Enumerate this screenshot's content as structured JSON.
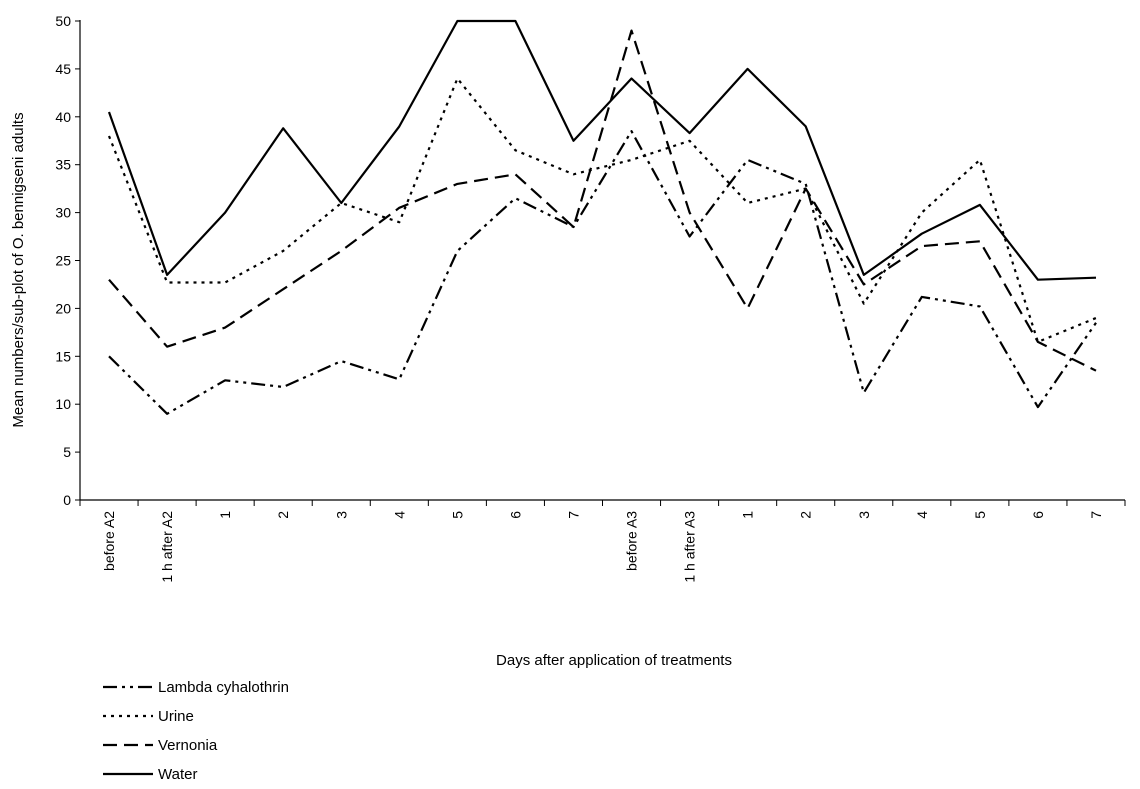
{
  "chart_data": {
    "type": "line",
    "title": "",
    "xlabel": "Days after application of treatments",
    "ylabel": "Mean numbers/sub-plot of O. bennigseni adults",
    "ylim": [
      0,
      50
    ],
    "yticks": [
      0,
      5,
      10,
      15,
      20,
      25,
      30,
      35,
      40,
      45,
      50
    ],
    "categories": [
      "before A2",
      "1 h after A2",
      "1",
      "2",
      "3",
      "4",
      "5",
      "6",
      "7",
      "before A3",
      "1 h after A3",
      "1",
      "2",
      "3",
      "4",
      "5",
      "6",
      "7"
    ],
    "grid": false,
    "legend_position": "bottom-left",
    "series": [
      {
        "name": "Lambda cyhalothrin",
        "dash": "long-dash-dot-dot",
        "values": [
          15.0,
          9.0,
          12.5,
          11.8,
          14.5,
          12.6,
          26.0,
          31.5,
          28.5,
          38.5,
          27.5,
          35.5,
          33.0,
          11.2,
          21.2,
          20.2,
          9.7,
          18.5
        ]
      },
      {
        "name": "Urine",
        "dash": "dotted",
        "values": [
          38.0,
          22.7,
          22.7,
          26.0,
          31.0,
          29.0,
          44.0,
          36.5,
          34.0,
          35.5,
          37.5,
          31.0,
          32.5,
          20.5,
          30.0,
          35.5,
          16.5,
          19.0
        ]
      },
      {
        "name": "Vernonia",
        "dash": "long-dash",
        "values": [
          23.0,
          16.0,
          18.0,
          22.0,
          26.0,
          30.5,
          33.0,
          34.0,
          28.5,
          49.0,
          30.0,
          20.0,
          32.5,
          22.5,
          26.5,
          27.0,
          16.5,
          13.5
        ]
      },
      {
        "name": "Water",
        "dash": "solid",
        "values": [
          40.5,
          23.5,
          30.0,
          38.8,
          31.0,
          39.0,
          50.0,
          50.0,
          37.5,
          44.0,
          38.3,
          45.0,
          39.0,
          23.5,
          27.8,
          30.8,
          23.0,
          23.2
        ]
      }
    ]
  }
}
